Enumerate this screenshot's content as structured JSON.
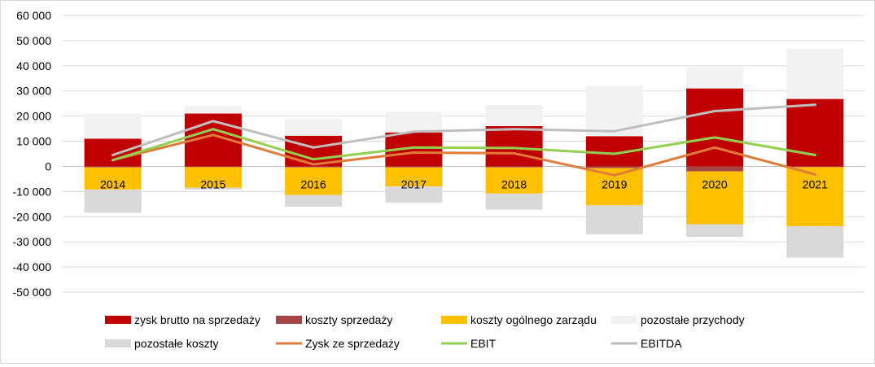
{
  "chart_data": {
    "type": "bar",
    "stacked": true,
    "categories": [
      "2014",
      "2015",
      "2016",
      "2017",
      "2018",
      "2019",
      "2020",
      "2021"
    ],
    "ylim": [
      -50000,
      60000
    ],
    "yticks": [
      60000,
      50000,
      40000,
      30000,
      20000,
      10000,
      0,
      -10000,
      -20000,
      -30000,
      -40000,
      -50000
    ],
    "ytick_labels": [
      "60 000",
      "50 000",
      "40 000",
      "30 000",
      "20 000",
      "10 000",
      "0",
      "-10 000",
      "-20 000",
      "-30 000",
      "-40 000",
      "-50 000"
    ],
    "grid": true,
    "legend_position": "bottom",
    "bar_series": [
      {
        "name": "zysk brutto na sprzedaży",
        "color": "#c00000",
        "values": [
          11000,
          21000,
          12200,
          13500,
          16000,
          12000,
          31000,
          26800
        ]
      },
      {
        "name": "koszty sprzedaży",
        "color": "#a94444",
        "values": [
          -400,
          -300,
          -400,
          -400,
          -400,
          -700,
          -2000,
          -300
        ]
      },
      {
        "name": "koszty ogólnego zarządu",
        "color": "#ffc000",
        "values": [
          -8800,
          -8200,
          -11000,
          -7600,
          -10400,
          -14800,
          -21000,
          -23500
        ]
      },
      {
        "name": "pozostałe przychody",
        "color": "#f2f2f2",
        "values": [
          10000,
          3000,
          6800,
          8200,
          8300,
          20000,
          8500,
          20000
        ]
      },
      {
        "name": "pozostałe koszty",
        "color": "#d9d9d9",
        "values": [
          -9200,
          -800,
          -4600,
          -6400,
          -6400,
          -11500,
          -5000,
          -12500
        ]
      }
    ],
    "line_series": [
      {
        "name": "Zysk ze sprzedaży",
        "color": "#e07b39",
        "values": [
          2500,
          12500,
          800,
          5500,
          5200,
          -3500,
          7500,
          -3200
        ]
      },
      {
        "name": "EBIT",
        "color": "#92d050",
        "values": [
          2500,
          14800,
          2800,
          7500,
          7300,
          5000,
          11500,
          4500
        ]
      },
      {
        "name": "EBITDA",
        "color": "#bfbfbf",
        "values": [
          4500,
          18000,
          7500,
          13800,
          14800,
          14000,
          22000,
          24500
        ]
      }
    ],
    "legend": [
      "zysk brutto na sprzedaży",
      "koszty sprzedaży",
      "koszty ogólnego zarządu",
      "pozostałe przychody",
      "pozostałe koszty",
      "Zysk ze sprzedaży",
      "EBIT",
      "EBITDA"
    ]
  }
}
